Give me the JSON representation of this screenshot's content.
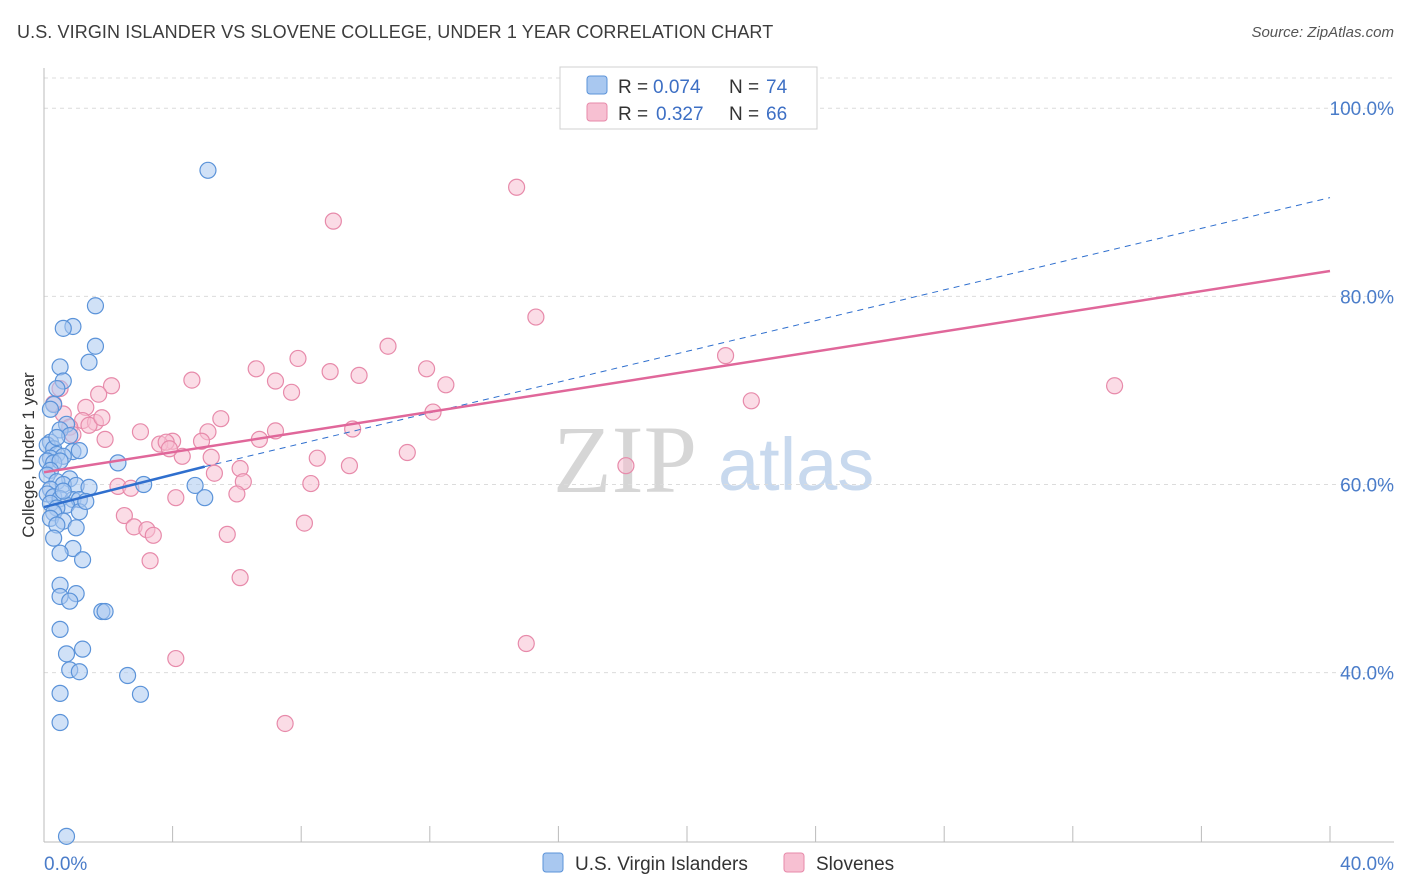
{
  "title": "U.S. VIRGIN ISLANDER VS SLOVENE COLLEGE, UNDER 1 YEAR CORRELATION CHART",
  "source": "Source: ZipAtlas.com",
  "watermark": {
    "zip": "ZIP",
    "atlas": "atlas"
  },
  "colors": {
    "blue_fill": "#a9c8f0",
    "blue_stroke": "#5b93d9",
    "blue_line": "#2f6fce",
    "pink_fill": "#f7c0d2",
    "pink_stroke": "#e78aaa",
    "pink_line": "#e0679a",
    "grid": "#dcdcdc",
    "tick_text": "#4a7cc9"
  },
  "legend": {
    "rows": [
      {
        "r_label": "R = ",
        "r_value": "0.074",
        "n_label": "N = ",
        "n_value": "74"
      },
      {
        "r_label": "R = ",
        "r_value": "0.327",
        "n_label": "N = ",
        "n_value": "66"
      }
    ]
  },
  "chart_data": {
    "type": "scatter",
    "title": "U.S. VIRGIN ISLANDER VS SLOVENE COLLEGE, UNDER 1 YEAR CORRELATION CHART",
    "xlabel": "",
    "ylabel": "College, Under 1 year",
    "xlim": [
      0,
      40
    ],
    "ylim": [
      22,
      103
    ],
    "x_tick_labels": [
      "0.0%",
      "40.0%"
    ],
    "y_ticks": [
      40,
      60,
      80,
      100
    ],
    "y_tick_labels": [
      "40.0%",
      "60.0%",
      "80.0%",
      "100.0%"
    ],
    "grid": true,
    "legend_entries": [
      "U.S. Virgin Islanders",
      "Slovenes"
    ],
    "series": [
      {
        "name": "U.S. Virgin Islanders",
        "r": 0.074,
        "n": 74,
        "trend_solid": [
          [
            0.0,
            57.6
          ],
          [
            5.0,
            61.9
          ]
        ],
        "trend_dashed": [
          [
            5.0,
            61.9
          ],
          [
            40.0,
            90.5
          ]
        ],
        "points": [
          [
            5.1,
            93.4
          ],
          [
            1.6,
            79.0
          ],
          [
            0.9,
            76.8
          ],
          [
            0.6,
            76.6
          ],
          [
            1.6,
            74.7
          ],
          [
            1.4,
            73.0
          ],
          [
            0.5,
            72.5
          ],
          [
            0.6,
            71.0
          ],
          [
            0.4,
            70.2
          ],
          [
            0.3,
            68.5
          ],
          [
            0.2,
            68.0
          ],
          [
            0.7,
            66.4
          ],
          [
            0.5,
            65.8
          ],
          [
            0.8,
            65.2
          ],
          [
            0.2,
            64.5
          ],
          [
            0.1,
            64.2
          ],
          [
            0.3,
            63.8
          ],
          [
            0.9,
            63.5
          ],
          [
            1.1,
            63.6
          ],
          [
            0.4,
            63.2
          ],
          [
            0.6,
            63.0
          ],
          [
            0.2,
            62.8
          ],
          [
            0.1,
            62.5
          ],
          [
            0.3,
            62.3
          ],
          [
            0.5,
            62.5
          ],
          [
            2.3,
            62.3
          ],
          [
            0.2,
            61.5
          ],
          [
            0.1,
            61.0
          ],
          [
            0.8,
            60.6
          ],
          [
            0.4,
            60.3
          ],
          [
            0.6,
            60.0
          ],
          [
            1.0,
            59.9
          ],
          [
            1.4,
            59.7
          ],
          [
            3.1,
            60.0
          ],
          [
            4.7,
            59.9
          ],
          [
            0.2,
            59.5
          ],
          [
            0.1,
            59.0
          ],
          [
            0.3,
            58.7
          ],
          [
            0.5,
            58.5
          ],
          [
            0.9,
            58.4
          ],
          [
            1.1,
            58.4
          ],
          [
            0.2,
            58.0
          ],
          [
            0.7,
            57.8
          ],
          [
            0.4,
            57.5
          ],
          [
            5.0,
            58.6
          ],
          [
            0.3,
            57.0
          ],
          [
            1.1,
            57.1
          ],
          [
            0.2,
            56.4
          ],
          [
            0.6,
            56.1
          ],
          [
            0.4,
            55.7
          ],
          [
            1.0,
            55.4
          ],
          [
            0.3,
            54.3
          ],
          [
            0.9,
            53.2
          ],
          [
            0.5,
            52.7
          ],
          [
            1.2,
            52.0
          ],
          [
            0.5,
            49.3
          ],
          [
            1.0,
            48.4
          ],
          [
            0.5,
            48.1
          ],
          [
            0.8,
            47.6
          ],
          [
            1.8,
            46.5
          ],
          [
            1.9,
            46.5
          ],
          [
            0.5,
            44.6
          ],
          [
            1.2,
            42.5
          ],
          [
            0.7,
            42.0
          ],
          [
            0.8,
            40.3
          ],
          [
            1.1,
            40.1
          ],
          [
            2.6,
            39.7
          ],
          [
            0.5,
            37.8
          ],
          [
            3.0,
            37.7
          ],
          [
            0.5,
            34.7
          ],
          [
            0.7,
            22.6
          ],
          [
            0.4,
            65.0
          ],
          [
            1.3,
            58.2
          ],
          [
            0.6,
            59.3
          ]
        ]
      },
      {
        "name": "Slovenes",
        "r": 0.327,
        "n": 66,
        "trend_solid": [
          [
            0.0,
            61.3
          ],
          [
            40.0,
            82.7
          ]
        ],
        "points": [
          [
            14.7,
            91.6
          ],
          [
            9.0,
            88.0
          ],
          [
            15.3,
            77.8
          ],
          [
            10.7,
            74.7
          ],
          [
            21.2,
            73.7
          ],
          [
            7.9,
            73.4
          ],
          [
            11.9,
            72.3
          ],
          [
            6.6,
            72.3
          ],
          [
            8.9,
            72.0
          ],
          [
            9.8,
            71.6
          ],
          [
            4.6,
            71.1
          ],
          [
            7.2,
            71.0
          ],
          [
            2.1,
            70.5
          ],
          [
            12.5,
            70.6
          ],
          [
            33.3,
            70.5
          ],
          [
            0.5,
            70.2
          ],
          [
            1.7,
            69.6
          ],
          [
            7.7,
            69.8
          ],
          [
            22.0,
            68.9
          ],
          [
            1.3,
            68.2
          ],
          [
            0.3,
            68.6
          ],
          [
            12.1,
            67.7
          ],
          [
            0.6,
            67.5
          ],
          [
            5.5,
            67.0
          ],
          [
            1.2,
            66.8
          ],
          [
            1.6,
            66.6
          ],
          [
            1.4,
            66.3
          ],
          [
            0.8,
            66.1
          ],
          [
            9.6,
            65.9
          ],
          [
            7.2,
            65.7
          ],
          [
            3.0,
            65.6
          ],
          [
            5.1,
            65.6
          ],
          [
            1.9,
            64.8
          ],
          [
            6.7,
            64.8
          ],
          [
            4.0,
            64.6
          ],
          [
            3.6,
            64.3
          ],
          [
            3.8,
            64.5
          ],
          [
            4.9,
            64.6
          ],
          [
            11.3,
            63.4
          ],
          [
            5.2,
            62.9
          ],
          [
            8.5,
            62.8
          ],
          [
            4.3,
            63.0
          ],
          [
            9.5,
            62.0
          ],
          [
            6.1,
            61.7
          ],
          [
            18.1,
            62.0
          ],
          [
            5.3,
            61.2
          ],
          [
            6.2,
            60.3
          ],
          [
            8.3,
            60.1
          ],
          [
            2.3,
            59.8
          ],
          [
            2.7,
            59.6
          ],
          [
            6.0,
            59.0
          ],
          [
            4.1,
            58.6
          ],
          [
            2.5,
            56.7
          ],
          [
            8.1,
            55.9
          ],
          [
            2.8,
            55.5
          ],
          [
            3.2,
            55.2
          ],
          [
            3.4,
            54.6
          ],
          [
            5.7,
            54.7
          ],
          [
            3.3,
            51.9
          ],
          [
            6.1,
            50.1
          ],
          [
            15.0,
            43.1
          ],
          [
            4.1,
            41.5
          ],
          [
            7.5,
            34.6
          ],
          [
            3.9,
            63.8
          ],
          [
            0.9,
            65.3
          ],
          [
            1.8,
            67.1
          ]
        ]
      }
    ]
  }
}
